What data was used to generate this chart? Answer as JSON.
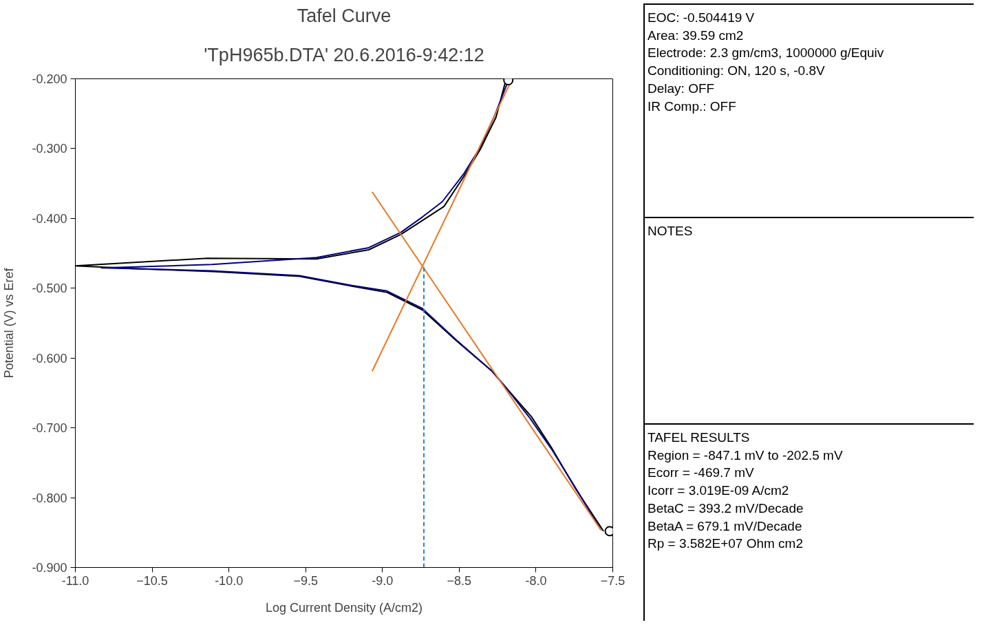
{
  "chart_data": {
    "type": "line",
    "title": "Tafel Curve",
    "subtitle": "'TpH965b.DTA' 20.6.2016-9:42:12",
    "xlabel": "Log Current Density (A/cm2)",
    "ylabel": "Potential (V) vs Eref",
    "xlim": [
      -11.0,
      -7.5
    ],
    "ylim": [
      -0.9,
      -0.2
    ],
    "xticks": [
      {
        "value": -11.0,
        "label": "-11.0"
      },
      -10.5,
      {
        "value": -10.0,
        "label": "-10.0"
      },
      -9.5,
      {
        "value": -9.0,
        "label": "-9.0"
      },
      -8.5,
      {
        "value": -8.0,
        "label": "-8.0"
      },
      -7.5
    ],
    "yticks": [
      {
        "value": -0.9,
        "label": "-0.900"
      },
      {
        "value": -0.8,
        "label": "-0.800"
      },
      {
        "value": -0.7,
        "label": "-0.700"
      },
      {
        "value": -0.6,
        "label": "-0.600"
      },
      {
        "value": -0.5,
        "label": "-0.500"
      },
      {
        "value": -0.4,
        "label": "-0.400"
      },
      {
        "value": -0.3,
        "label": "-0.300"
      },
      {
        "value": -0.2,
        "label": "-0.200"
      }
    ],
    "grid": false,
    "series": [
      {
        "color": "#000000",
        "x": [
          -7.56,
          -7.74,
          -7.9,
          -8.03,
          -8.2,
          -8.29,
          -8.52,
          -8.74,
          -8.97,
          -9.2,
          -9.54,
          -10.11,
          -10.6,
          -11.0,
          -10.14,
          -9.43,
          -9.09,
          -8.88,
          -8.74,
          -8.6,
          -8.47,
          -8.36,
          -8.26,
          -8.2
        ],
        "values": [
          -0.848,
          -0.788,
          -0.728,
          -0.684,
          -0.641,
          -0.618,
          -0.575,
          -0.531,
          -0.506,
          -0.497,
          -0.483,
          -0.476,
          -0.472,
          -0.468,
          -0.457,
          -0.458,
          -0.445,
          -0.423,
          -0.403,
          -0.383,
          -0.34,
          -0.3,
          -0.255,
          -0.205
        ]
      },
      {
        "color": "#000080",
        "x": [
          -7.58,
          -7.74,
          -7.9,
          -8.04,
          -8.2,
          -8.29,
          -8.52,
          -8.74,
          -8.97,
          -9.2,
          -9.54,
          -10.11,
          -10.81,
          -10.83,
          -10.11,
          -9.43,
          -9.09,
          -8.88,
          -8.74,
          -8.61,
          -8.47,
          -8.36,
          -8.27,
          -8.19
        ],
        "values": [
          -0.845,
          -0.787,
          -0.73,
          -0.686,
          -0.641,
          -0.618,
          -0.574,
          -0.529,
          -0.504,
          -0.496,
          -0.482,
          -0.475,
          -0.471,
          -0.471,
          -0.466,
          -0.456,
          -0.442,
          -0.42,
          -0.398,
          -0.376,
          -0.336,
          -0.297,
          -0.253,
          -0.208
        ]
      },
      {
        "color": "#e87722",
        "x": [
          -9.067,
          -7.575
        ],
        "values": [
          -0.362,
          -0.847
        ]
      },
      {
        "color": "#e87722",
        "x": [
          -9.067,
          -8.157
        ],
        "values": [
          -0.619,
          -0.201
        ]
      },
      {
        "color": "#2a7fd0",
        "line_style": "dashed",
        "x": [
          -8.73,
          -8.73
        ],
        "values": [
          -0.9,
          -0.468
        ]
      },
      {
        "type": "scatter",
        "marker": "circle",
        "color": "#000000",
        "x": [
          -8.18,
          -7.52
        ],
        "values": [
          -0.202,
          -0.848
        ]
      }
    ],
    "annotations": [
      "EOC: -0.504419 V",
      "Area: 39.59 cm2",
      "Electrode: 2.3 gm/cm3, 1000000 g/Equiv",
      "Conditioning: ON, 120 s, -0.8V",
      "Delay: OFF",
      "IR Comp.: OFF",
      "NOTES",
      "TAFEL RESULTS",
      "Region = -847.1 mV to -202.5 mV",
      "Ecorr = -469.7 mV",
      "Icorr = 3.019E-09 A/cm2",
      "BetaC = 393.2 mV/Decade",
      "BetaA = 679.1 mV/Decade",
      "Rp = 3.582E+07 Ohm cm2"
    ]
  }
}
